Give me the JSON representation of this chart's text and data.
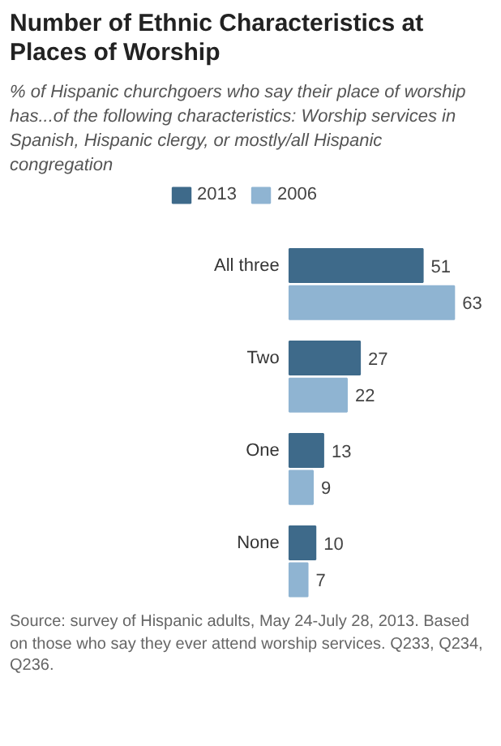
{
  "chart_data": {
    "type": "bar",
    "orientation": "horizontal",
    "title": "Number of Ethnic Characteristics at Places of Worship",
    "subtitle": "% of Hispanic churchgoers who say their place of worship has...of the following  characteristics: Worship services in Spanish, Hispanic clergy, or mostly/all Hispanic congregation",
    "categories": [
      "All three",
      "Two",
      "One",
      "None"
    ],
    "series": [
      {
        "name": "2013",
        "color": "#3e6a8a",
        "values": [
          51,
          27,
          13,
          10
        ]
      },
      {
        "name": "2006",
        "color": "#8fb4d2",
        "values": [
          63,
          22,
          9,
          7
        ]
      }
    ],
    "data_labels": true,
    "legend": "top",
    "grid": false,
    "annotations": [
      "Source: survey of Hispanic adults, May 24-July 28, 2013. Based on those who say they ever attend worship services. Q233, Q234, Q236."
    ]
  }
}
